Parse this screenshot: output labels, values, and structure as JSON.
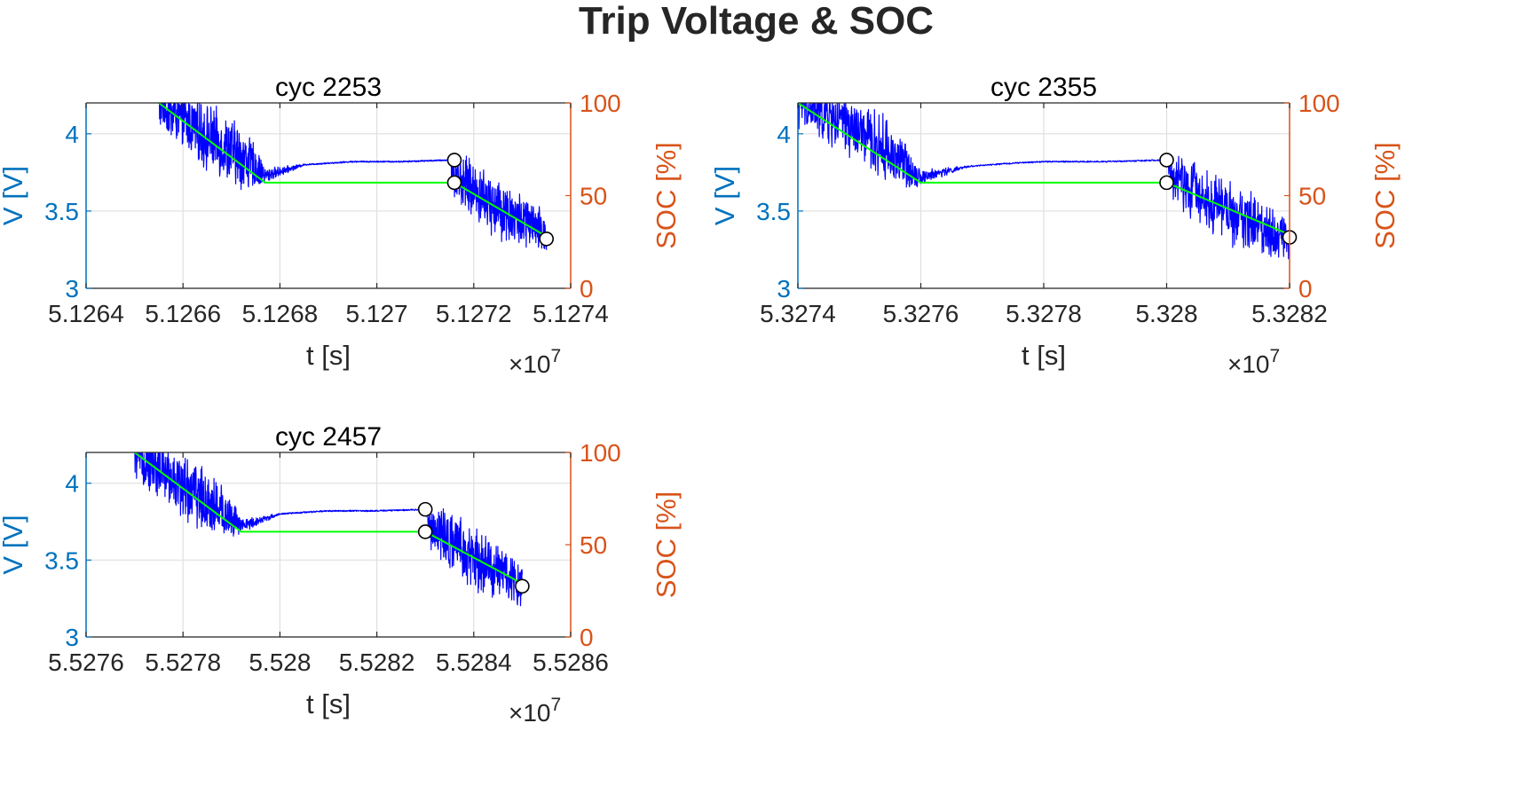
{
  "figure": {
    "title": "Trip Voltage & SOC"
  },
  "colors": {
    "left_axis": "#0072BD",
    "right_axis": "#D95319",
    "voltage_line": "#0000FF",
    "soc_line": "#00FF00",
    "grid": "#DFDFDF",
    "marker_fill": "#FFFFFF",
    "marker_edge": "#000000",
    "text": "#262626"
  },
  "chart_data": [
    {
      "type": "line",
      "title": "cyc 2253",
      "xlabel": "t [s]",
      "ylabel_left": "V [V]",
      "ylabel_right": "SOC [%]",
      "x_exponent": "×10^7",
      "xlim": [
        5.1264,
        5.1274
      ],
      "xticks": [
        5.1264,
        5.1266,
        5.1268,
        5.127,
        5.1272,
        5.1274
      ],
      "xtick_labels": [
        "5.1264",
        "5.1266",
        "5.1268",
        "5.127",
        "5.1272",
        "5.1274"
      ],
      "ylim_left": [
        3,
        4.2
      ],
      "yticks_left": [
        3,
        3.5,
        4
      ],
      "ytick_labels_left": [
        "3",
        "3.5",
        "4"
      ],
      "ylim_right": [
        0,
        100
      ],
      "yticks_right": [
        0,
        50,
        100
      ],
      "ytick_labels_right": [
        "0",
        "50",
        "100"
      ],
      "grid": true,
      "series": [
        {
          "axis": "left",
          "style": "noisy",
          "x": [
            5.12655,
            5.12665,
            5.12672,
            5.12675,
            5.12677,
            5.12685,
            5.12695,
            5.127,
            5.12705,
            5.12715,
            5.12716,
            5.12725,
            5.12735
          ],
          "y": [
            4.2,
            3.98,
            3.85,
            3.78,
            3.73,
            3.8,
            3.82,
            3.82,
            3.82,
            3.83,
            3.73,
            3.52,
            3.35
          ],
          "noise_amp": [
            0.14,
            0.18,
            0.18,
            0.12,
            0.04,
            0.004,
            0.004,
            0.004,
            0.004,
            0.004,
            0.14,
            0.17,
            0.12
          ]
        },
        {
          "axis": "right",
          "x": [
            5.12655,
            5.12677,
            5.12716,
            5.12735
          ],
          "y": [
            100,
            57,
            57,
            28
          ]
        }
      ],
      "markers": [
        {
          "axis": "left",
          "x": 5.12716,
          "y": 3.83
        },
        {
          "axis": "right",
          "x": 5.12716,
          "y": 57
        },
        {
          "axis": "left",
          "x": 5.12735,
          "y": 3.32
        }
      ]
    },
    {
      "type": "line",
      "title": "cyc 2355",
      "xlabel": "t [s]",
      "ylabel_left": "V [V]",
      "ylabel_right": "SOC [%]",
      "x_exponent": "×10^7",
      "xlim": [
        5.3274,
        5.3282
      ],
      "xticks": [
        5.3274,
        5.3276,
        5.3278,
        5.328,
        5.3282
      ],
      "xtick_labels": [
        "5.3274",
        "5.3276",
        "5.3278",
        "5.328",
        "5.3282"
      ],
      "ylim_left": [
        3,
        4.2
      ],
      "yticks_left": [
        3,
        3.5,
        4
      ],
      "ytick_labels_left": [
        "3",
        "3.5",
        "4"
      ],
      "ylim_right": [
        0,
        100
      ],
      "yticks_right": [
        0,
        50,
        100
      ],
      "ytick_labels_right": [
        "0",
        "50",
        "100"
      ],
      "grid": true,
      "series": [
        {
          "axis": "left",
          "style": "noisy",
          "x": [
            5.3274,
            5.32748,
            5.32755,
            5.32758,
            5.3276,
            5.32768,
            5.32775,
            5.3278,
            5.32785,
            5.3279,
            5.328,
            5.32801,
            5.3281,
            5.3282
          ],
          "y": [
            4.2,
            4.05,
            3.88,
            3.78,
            3.72,
            3.79,
            3.81,
            3.82,
            3.82,
            3.82,
            3.83,
            3.72,
            3.5,
            3.32
          ],
          "noise_amp": [
            0.14,
            0.17,
            0.18,
            0.12,
            0.04,
            0.004,
            0.004,
            0.004,
            0.004,
            0.004,
            0.004,
            0.14,
            0.18,
            0.12
          ]
        },
        {
          "axis": "right",
          "x": [
            5.3274,
            5.3276,
            5.328,
            5.3282
          ],
          "y": [
            100,
            57,
            57,
            29
          ]
        }
      ],
      "markers": [
        {
          "axis": "left",
          "x": 5.328,
          "y": 3.83
        },
        {
          "axis": "right",
          "x": 5.328,
          "y": 57
        },
        {
          "axis": "left",
          "x": 5.3282,
          "y": 3.33
        }
      ]
    },
    {
      "type": "line",
      "title": "cyc 2457",
      "xlabel": "t [s]",
      "ylabel_left": "V [V]",
      "ylabel_right": "SOC [%]",
      "x_exponent": "×10^7",
      "xlim": [
        5.5276,
        5.5286
      ],
      "xticks": [
        5.5276,
        5.5278,
        5.528,
        5.5282,
        5.5284,
        5.5286
      ],
      "xtick_labels": [
        "5.5276",
        "5.5278",
        "5.528",
        "5.5282",
        "5.5284",
        "5.5286"
      ],
      "ylim_left": [
        3,
        4.2
      ],
      "yticks_left": [
        3,
        3.5,
        4
      ],
      "ytick_labels_left": [
        "3",
        "3.5",
        "4"
      ],
      "ylim_right": [
        0,
        100
      ],
      "yticks_right": [
        0,
        50,
        100
      ],
      "ytick_labels_right": [
        "0",
        "50",
        "100"
      ],
      "grid": true,
      "series": [
        {
          "axis": "left",
          "style": "noisy",
          "x": [
            5.5277,
            5.5278,
            5.52787,
            5.5279,
            5.52792,
            5.528,
            5.5281,
            5.5282,
            5.5283,
            5.52831,
            5.5284,
            5.5285
          ],
          "y": [
            4.2,
            3.98,
            3.84,
            3.77,
            3.72,
            3.8,
            3.82,
            3.82,
            3.83,
            3.72,
            3.5,
            3.35
          ],
          "noise_amp": [
            0.14,
            0.18,
            0.17,
            0.12,
            0.04,
            0.004,
            0.004,
            0.004,
            0.004,
            0.14,
            0.18,
            0.12
          ]
        },
        {
          "axis": "right",
          "x": [
            5.5277,
            5.52792,
            5.5283,
            5.5285
          ],
          "y": [
            100,
            57,
            57,
            29
          ]
        }
      ],
      "markers": [
        {
          "axis": "left",
          "x": 5.5283,
          "y": 3.83
        },
        {
          "axis": "right",
          "x": 5.5283,
          "y": 57
        },
        {
          "axis": "left",
          "x": 5.5285,
          "y": 3.33
        }
      ]
    }
  ]
}
